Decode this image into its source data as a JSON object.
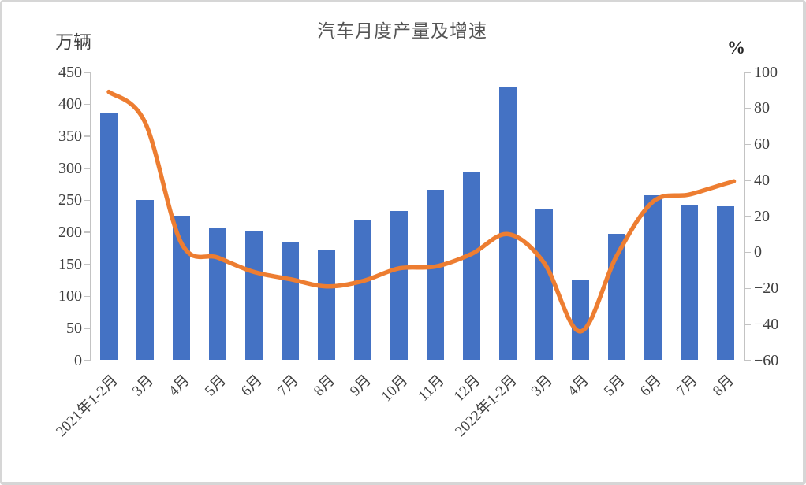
{
  "title": "汽车月度产量及增速",
  "left_axis": {
    "unit_label": "万辆",
    "ticks": [
      0,
      50,
      100,
      150,
      200,
      250,
      300,
      350,
      400,
      450
    ],
    "min": 0,
    "max": 450
  },
  "right_axis": {
    "unit_label": "%",
    "ticks": [
      -60,
      -40,
      -20,
      0,
      20,
      40,
      60,
      80,
      100
    ],
    "min": -60,
    "max": 100
  },
  "colors": {
    "bar": "#4472C4",
    "line": "#ED7D31",
    "axis": "#c3c3c3",
    "text": "#404040",
    "title": "#555555"
  },
  "chart_data": {
    "type": "bar+line combo",
    "title": "汽车月度产量及增速",
    "categories": [
      "2021年1-2月",
      "3月",
      "4月",
      "5月",
      "6月",
      "7月",
      "8月",
      "9月",
      "10月",
      "11月",
      "12月",
      "2022年1-2月",
      "3月",
      "4月",
      "5月",
      "6月",
      "7月",
      "8月"
    ],
    "series": [
      {
        "name": "产量",
        "type": "bar",
        "axis": "left",
        "unit": "万辆",
        "color": "#4472C4",
        "values": [
          385,
          250,
          226,
          207,
          202,
          184,
          172,
          218,
          233,
          266,
          295,
          427,
          237,
          126,
          197,
          257,
          243,
          240
        ]
      },
      {
        "name": "增速",
        "type": "line",
        "axis": "right",
        "unit": "%",
        "color": "#ED7D31",
        "values": [
          89,
          72,
          5,
          -3,
          -11,
          -15,
          -19,
          -16,
          -9,
          -8,
          -1,
          10,
          -6,
          -44,
          -2,
          28,
          32,
          38
        ]
      }
    ],
    "left_ylim": [
      0,
      450
    ],
    "right_ylim": [
      -60,
      100
    ],
    "grid": false,
    "legend": false
  }
}
